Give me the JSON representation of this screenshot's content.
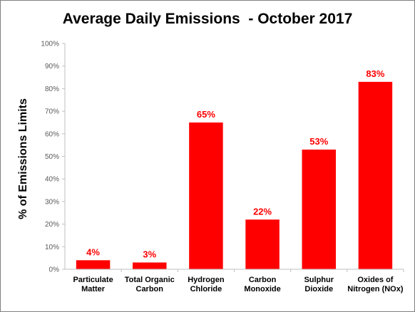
{
  "chart_data": {
    "type": "bar",
    "title": "Average Daily Emissions  - October 2017",
    "xlabel": "",
    "ylabel": "% of Emissions Limits",
    "categories": [
      [
        "Particulate",
        "Matter"
      ],
      [
        "Total Organic",
        "Carbon"
      ],
      [
        "Hydrogen",
        "Chloride"
      ],
      [
        "Carbon",
        "Monoxide"
      ],
      [
        "Sulphur",
        "Dioxide"
      ],
      [
        "Oxides of",
        "Nitrogen (NOx)"
      ]
    ],
    "values": [
      4,
      3,
      65,
      22,
      53,
      83
    ],
    "value_labels": [
      "4%",
      "3%",
      "65%",
      "22%",
      "53%",
      "83%"
    ],
    "ylim": [
      0,
      100
    ],
    "y_ticks": [
      "0%",
      "10%",
      "20%",
      "30%",
      "40%",
      "50%",
      "60%",
      "70%",
      "80%",
      "90%",
      "100%"
    ],
    "grid": false,
    "legend": "none",
    "colors": {
      "bar": "#ff0000",
      "value_label": "#ff0000",
      "axis": "#bfbfbf",
      "tick_label": "#595959"
    }
  }
}
